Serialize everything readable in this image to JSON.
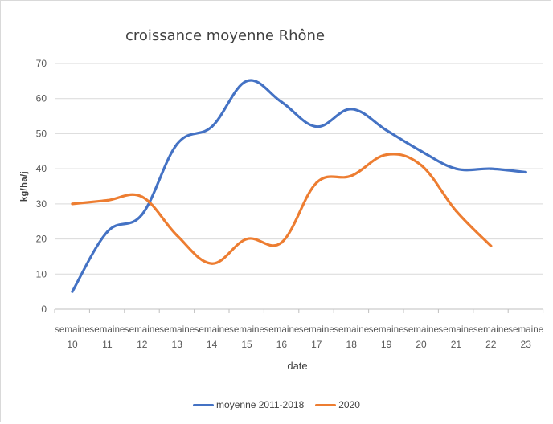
{
  "chart_data": {
    "type": "line",
    "title": "croissance moyenne Rhône",
    "xlabel": "date",
    "ylabel": "kg/ha/j",
    "ylim": [
      0,
      70
    ],
    "yticks": [
      0,
      10,
      20,
      30,
      40,
      50,
      60,
      70
    ],
    "grid": true,
    "legend_position": "bottom",
    "categories": [
      "semaine 10",
      "semaine 11",
      "semaine 12",
      "semaine 13",
      "semaine 14",
      "semaine 15",
      "semaine 16",
      "semaine 17",
      "semaine 18",
      "semaine 19",
      "semaine 20",
      "semaine 21",
      "semaine 22",
      "semaine 23"
    ],
    "tick_labels": [
      {
        "line1": "semaine",
        "line2": "10"
      },
      {
        "line1": "semaine",
        "line2": "11"
      },
      {
        "line1": "semaine",
        "line2": "12"
      },
      {
        "line1": "semaine",
        "line2": "13"
      },
      {
        "line1": "semaine",
        "line2": "14"
      },
      {
        "line1": "semaine",
        "line2": "15"
      },
      {
        "line1": "semaine",
        "line2": "16"
      },
      {
        "line1": "semaine",
        "line2": "17"
      },
      {
        "line1": "semaine",
        "line2": "18"
      },
      {
        "line1": "semaine",
        "line2": "19"
      },
      {
        "line1": "semaine",
        "line2": "20"
      },
      {
        "line1": "semaine",
        "line2": "21"
      },
      {
        "line1": "semaine",
        "line2": "22"
      },
      {
        "line1": "semaine",
        "line2": "23"
      }
    ],
    "series": [
      {
        "name": "moyenne 2011-2018",
        "color": "#4472C4",
        "values": [
          5,
          22,
          27,
          47,
          52,
          65,
          59,
          52,
          57,
          51,
          45,
          40,
          40,
          39
        ]
      },
      {
        "name": "2020",
        "color": "#ED7D31",
        "values": [
          30,
          31,
          32,
          21,
          13,
          20,
          19,
          36,
          38,
          44,
          41,
          28,
          18,
          null
        ]
      }
    ]
  }
}
